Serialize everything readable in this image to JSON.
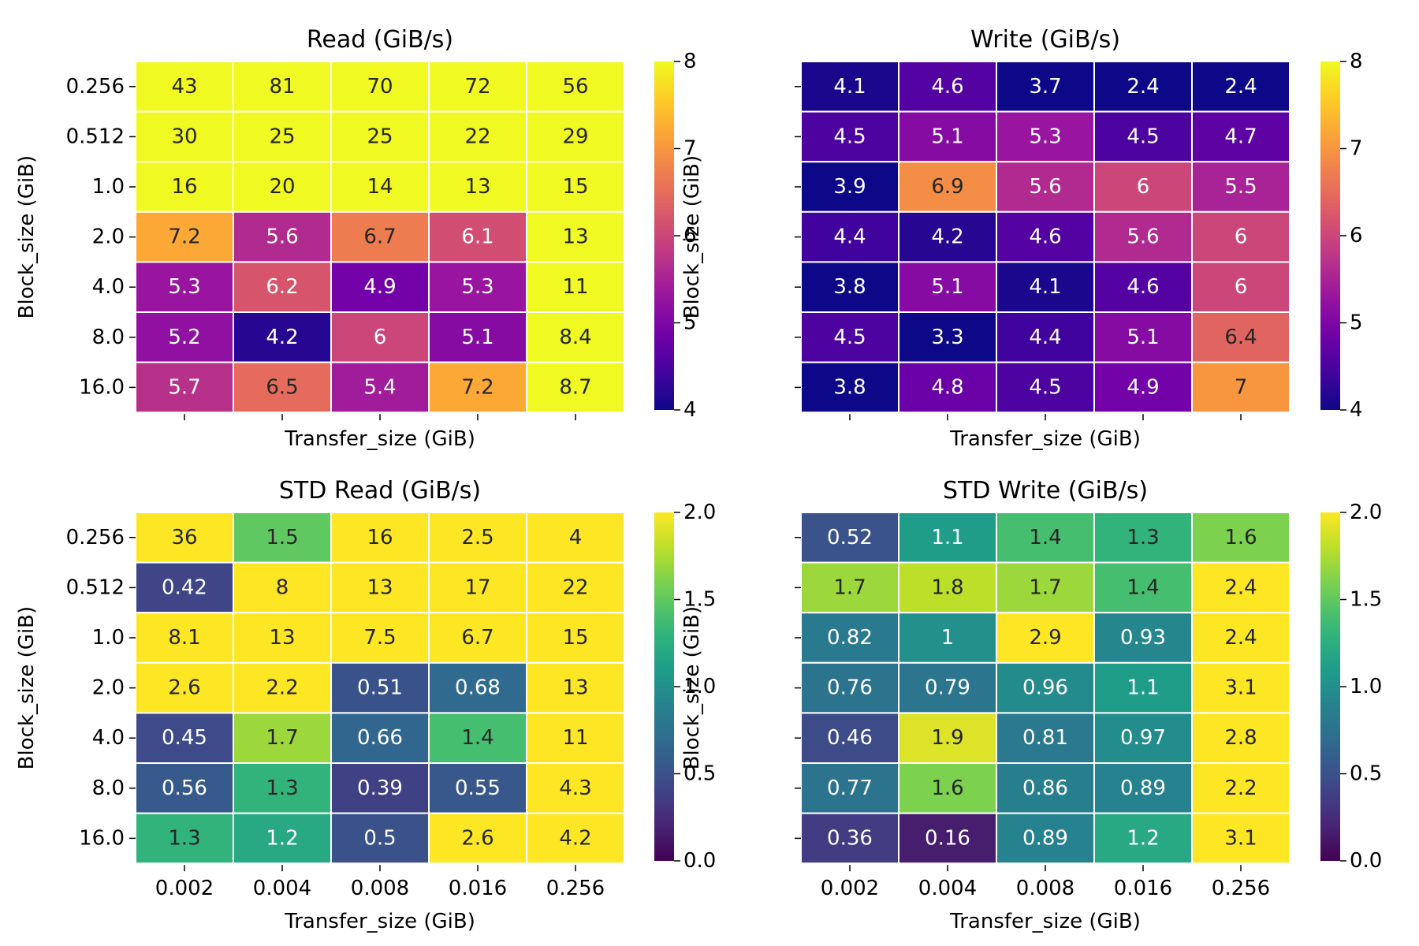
{
  "chart_data": [
    {
      "type": "heatmap",
      "title": "Read (GiB/s)",
      "xlabel": "Transfer_size (GiB)",
      "ylabel": "Block_size (GiB)",
      "x_categories": [
        "0.002",
        "0.004",
        "0.008",
        "0.016",
        "0.256"
      ],
      "y_categories": [
        "0.256",
        "0.512",
        "1.0",
        "2.0",
        "4.0",
        "8.0",
        "16.0"
      ],
      "x_ticklabels_visible": false,
      "y_ticklabels_visible": true,
      "values": [
        [
          "43",
          "81",
          "70",
          "72",
          "56"
        ],
        [
          "30",
          "25",
          "25",
          "22",
          "29"
        ],
        [
          "16",
          "20",
          "14",
          "13",
          "15"
        ],
        [
          "7.2",
          "5.6",
          "6.7",
          "6.1",
          "13"
        ],
        [
          "5.3",
          "6.2",
          "4.9",
          "5.3",
          "11"
        ],
        [
          "5.2",
          "4.2",
          "6",
          "5.1",
          "8.4"
        ],
        [
          "5.7",
          "6.5",
          "5.4",
          "7.2",
          "8.7"
        ]
      ],
      "colormap": "plasma",
      "vmin": 4,
      "vmax": 8,
      "colorbar_ticks": [
        "4",
        "5",
        "6",
        "7",
        "8"
      ]
    },
    {
      "type": "heatmap",
      "title": "Write (GiB/s)",
      "xlabel": "Transfer_size (GiB)",
      "ylabel": "Block_size (GiB)",
      "x_categories": [
        "0.002",
        "0.004",
        "0.008",
        "0.016",
        "0.256"
      ],
      "y_categories": [
        "0.256",
        "0.512",
        "1.0",
        "2.0",
        "4.0",
        "8.0",
        "16.0"
      ],
      "x_ticklabels_visible": false,
      "y_ticklabels_visible": false,
      "values": [
        [
          "4.1",
          "4.6",
          "3.7",
          "2.4",
          "2.4"
        ],
        [
          "4.5",
          "5.1",
          "5.3",
          "4.5",
          "4.7"
        ],
        [
          "3.9",
          "6.9",
          "5.6",
          "6",
          "5.5"
        ],
        [
          "4.4",
          "4.2",
          "4.6",
          "5.6",
          "6"
        ],
        [
          "3.8",
          "5.1",
          "4.1",
          "4.6",
          "6"
        ],
        [
          "4.5",
          "3.3",
          "4.4",
          "5.1",
          "6.4"
        ],
        [
          "3.8",
          "4.8",
          "4.5",
          "4.9",
          "7"
        ]
      ],
      "colormap": "plasma",
      "vmin": 4,
      "vmax": 8,
      "colorbar_ticks": [
        "4",
        "5",
        "6",
        "7",
        "8"
      ]
    },
    {
      "type": "heatmap",
      "title": "STD Read (GiB/s)",
      "xlabel": "Transfer_size (GiB)",
      "ylabel": "Block_size (GiB)",
      "x_categories": [
        "0.002",
        "0.004",
        "0.008",
        "0.016",
        "0.256"
      ],
      "y_categories": [
        "0.256",
        "0.512",
        "1.0",
        "2.0",
        "4.0",
        "8.0",
        "16.0"
      ],
      "x_ticklabels_visible": true,
      "y_ticklabels_visible": true,
      "values": [
        [
          "36",
          "1.5",
          "16",
          "2.5",
          "4"
        ],
        [
          "0.42",
          "8",
          "13",
          "17",
          "22"
        ],
        [
          "8.1",
          "13",
          "7.5",
          "6.7",
          "15"
        ],
        [
          "2.6",
          "2.2",
          "0.51",
          "0.68",
          "13"
        ],
        [
          "0.45",
          "1.7",
          "0.66",
          "1.4",
          "11"
        ],
        [
          "0.56",
          "1.3",
          "0.39",
          "0.55",
          "4.3"
        ],
        [
          "1.3",
          "1.2",
          "0.5",
          "2.6",
          "4.2"
        ]
      ],
      "colormap": "viridis",
      "vmin": 0,
      "vmax": 2,
      "colorbar_ticks": [
        "0.0",
        "0.5",
        "1.0",
        "1.5",
        "2.0"
      ]
    },
    {
      "type": "heatmap",
      "title": "STD Write (GiB/s)",
      "xlabel": "Transfer_size (GiB)",
      "ylabel": "Block_size (GiB)",
      "x_categories": [
        "0.002",
        "0.004",
        "0.008",
        "0.016",
        "0.256"
      ],
      "y_categories": [
        "0.256",
        "0.512",
        "1.0",
        "2.0",
        "4.0",
        "8.0",
        "16.0"
      ],
      "x_ticklabels_visible": true,
      "y_ticklabels_visible": false,
      "values": [
        [
          "0.52",
          "1.1",
          "1.4",
          "1.3",
          "1.6"
        ],
        [
          "1.7",
          "1.8",
          "1.7",
          "1.4",
          "2.4"
        ],
        [
          "0.82",
          "1",
          "2.9",
          "0.93",
          "2.4"
        ],
        [
          "0.76",
          "0.79",
          "0.96",
          "1.1",
          "3.1"
        ],
        [
          "0.46",
          "1.9",
          "0.81",
          "0.97",
          "2.8"
        ],
        [
          "0.77",
          "1.6",
          "0.86",
          "0.89",
          "2.2"
        ],
        [
          "0.36",
          "0.16",
          "0.89",
          "1.2",
          "3.1"
        ]
      ],
      "colormap": "viridis",
      "vmin": 0,
      "vmax": 2,
      "colorbar_ticks": [
        "0.0",
        "0.5",
        "1.0",
        "1.5",
        "2.0"
      ]
    }
  ]
}
